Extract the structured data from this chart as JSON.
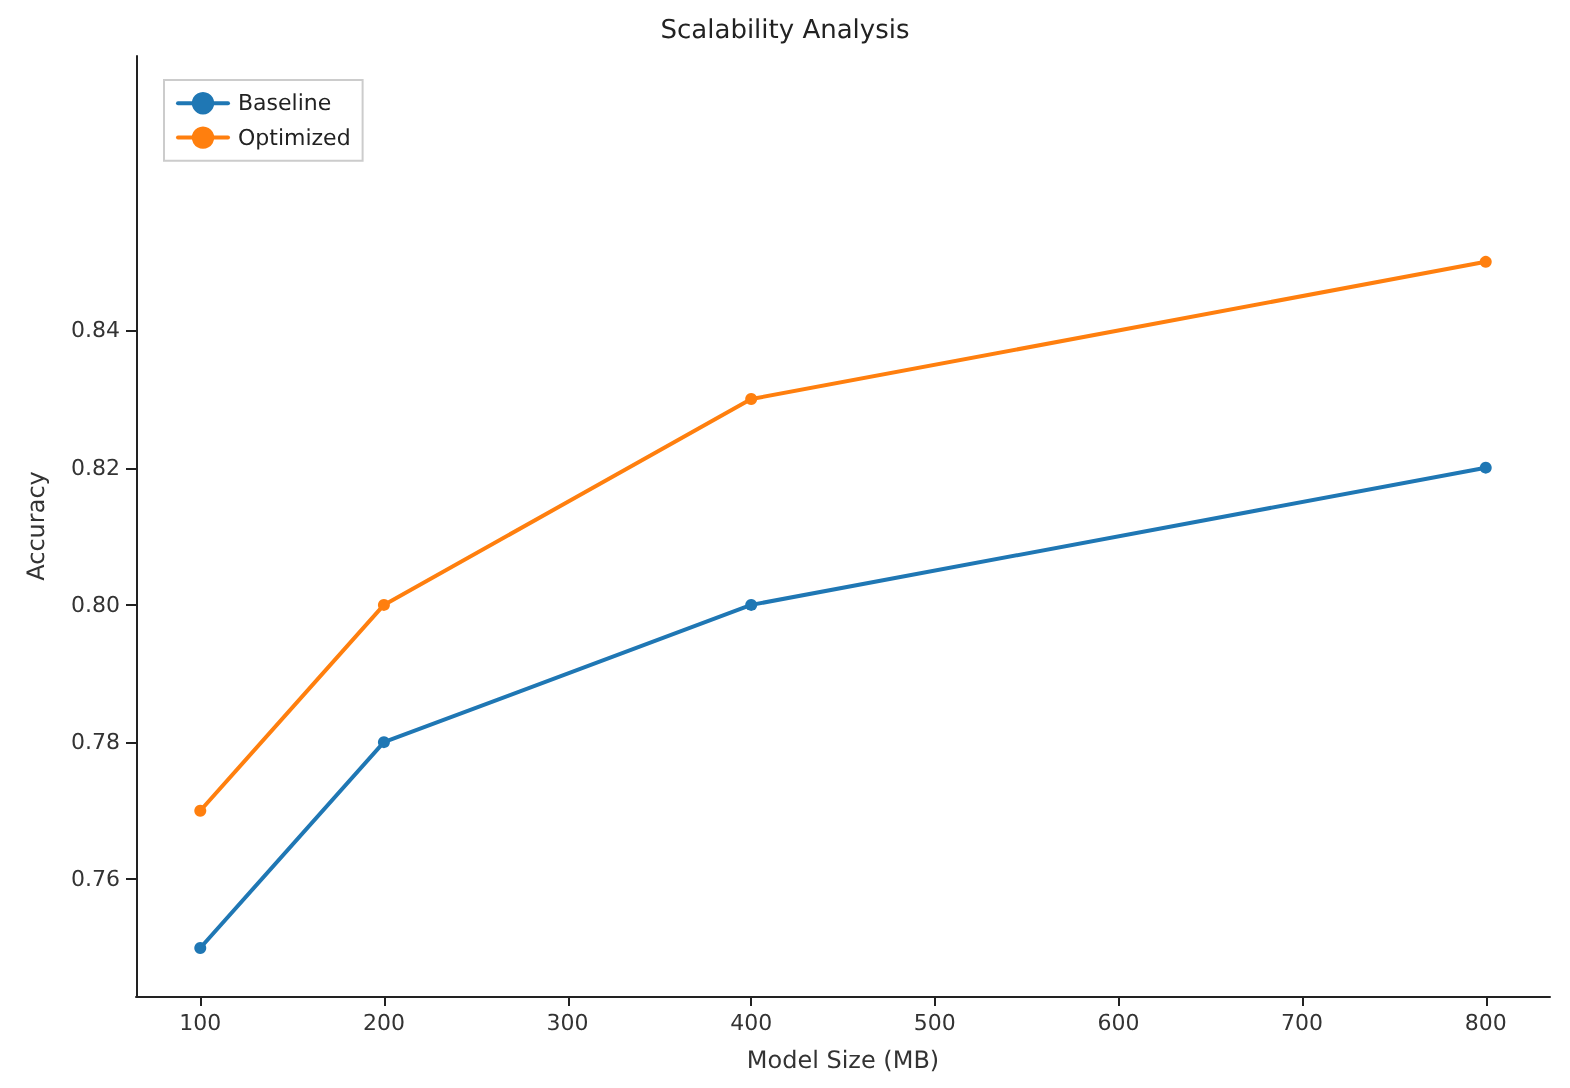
{
  "chart_data": {
    "type": "line",
    "title": "Scalability Analysis",
    "xlabel": "Model Size (MB)",
    "ylabel": "Accuracy",
    "x": [
      100,
      200,
      400,
      800
    ],
    "series": [
      {
        "name": "Baseline",
        "color": "#1f77b4",
        "values": [
          0.75,
          0.78,
          0.8,
          0.82
        ]
      },
      {
        "name": "Optimized",
        "color": "#ff7f0e",
        "values": [
          0.77,
          0.8,
          0.83,
          0.85
        ]
      }
    ],
    "xlim": [
      65,
      835
    ],
    "ylim": [
      0.743,
      0.88
    ],
    "xticks": [
      100,
      200,
      300,
      400,
      500,
      600,
      700,
      800
    ],
    "yticks": [
      {
        "value": 0.76,
        "label": "0.76"
      },
      {
        "value": 0.78,
        "label": "0.78"
      },
      {
        "value": 0.8,
        "label": "0.80"
      },
      {
        "value": 0.82,
        "label": "0.82"
      },
      {
        "value": 0.84,
        "label": "0.84"
      }
    ],
    "grid": false,
    "legend": "top left",
    "marker": "circle",
    "line_style": "solid"
  }
}
